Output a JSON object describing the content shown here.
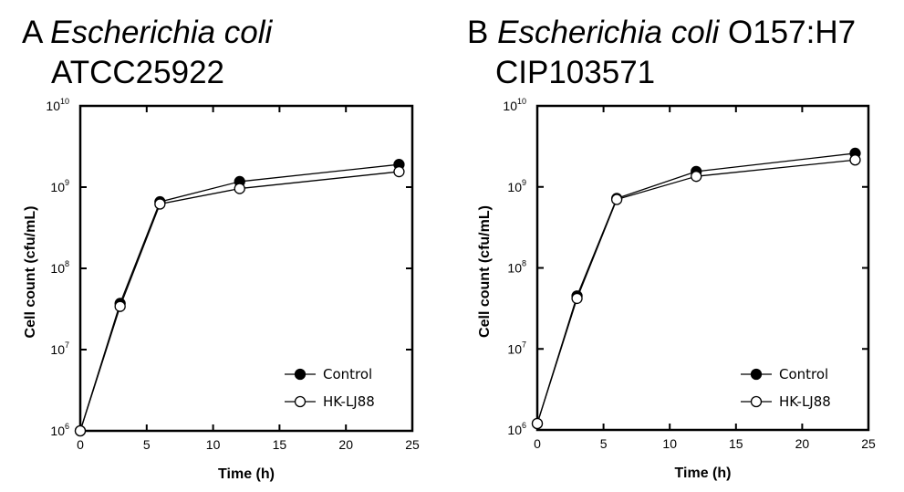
{
  "chart_data": [
    {
      "type": "line",
      "panel": "A",
      "title_prefix": "A",
      "title_species": "Escherichia coli",
      "title_strain_inline": "",
      "title_line2": "ATCC25922",
      "xlabel": "Time (h)",
      "ylabel": "Cell count (cfu/mL)",
      "xlim": [
        0,
        25
      ],
      "ylim_log10": [
        6,
        10
      ],
      "yscale": "log",
      "x_ticks": [
        "0",
        "5",
        "10",
        "15",
        "20",
        "25"
      ],
      "y_ticks": [
        {
          "base": "10",
          "exp": "6"
        },
        {
          "base": "10",
          "exp": "7"
        },
        {
          "base": "10",
          "exp": "8"
        },
        {
          "base": "10",
          "exp": "9"
        },
        {
          "base": "10",
          "exp": "10"
        }
      ],
      "legend_position": "bottom-right",
      "x": [
        0,
        3,
        6,
        12,
        24
      ],
      "series": [
        {
          "name": "Control",
          "marker": "filled-circle",
          "values": [
            1000000.0,
            37000000.0,
            660000000.0,
            1170000000.0,
            1900000000.0
          ]
        },
        {
          "name": "HK-LJ88",
          "marker": "open-circle",
          "values": [
            1000000.0,
            34000000.0,
            620000000.0,
            960000000.0,
            1550000000.0
          ]
        }
      ]
    },
    {
      "type": "line",
      "panel": "B",
      "title_prefix": "B",
      "title_species": "Escherichia coli",
      "title_strain_inline": "O157:H7",
      "title_line2": "CIP103571",
      "xlabel": "Time (h)",
      "ylabel": "Cell count (cfu/mL)",
      "xlim": [
        0,
        25
      ],
      "ylim_log10": [
        6,
        10
      ],
      "yscale": "log",
      "x_ticks": [
        "0",
        "5",
        "10",
        "15",
        "20",
        "25"
      ],
      "y_ticks": [
        {
          "base": "10",
          "exp": "6"
        },
        {
          "base": "10",
          "exp": "7"
        },
        {
          "base": "10",
          "exp": "8"
        },
        {
          "base": "10",
          "exp": "9"
        },
        {
          "base": "10",
          "exp": "10"
        }
      ],
      "legend_position": "bottom-right",
      "x": [
        0,
        3,
        6,
        12,
        24
      ],
      "series": [
        {
          "name": "Control",
          "marker": "filled-circle",
          "values": [
            1200000.0,
            45000000.0,
            720000000.0,
            1550000000.0,
            2600000000.0
          ]
        },
        {
          "name": "HK-LJ88",
          "marker": "open-circle",
          "values": [
            1200000.0,
            42000000.0,
            700000000.0,
            1350000000.0,
            2150000000.0
          ]
        }
      ]
    }
  ]
}
